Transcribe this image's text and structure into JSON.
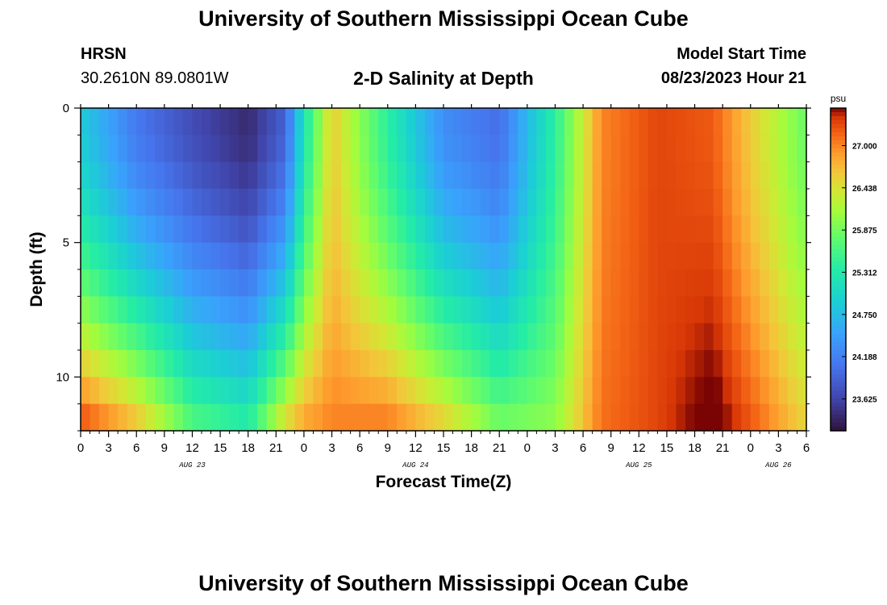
{
  "header": {
    "title": "University of Southern Mississippi Ocean Cube",
    "station": "HRSN",
    "coords": "30.2610N  89.0801W",
    "subtitle": "2-D Salinity at Depth",
    "start_label": "Model Start Time",
    "start_value": "08/23/2023 Hour 21"
  },
  "footer": {
    "title": "University of Southern Mississippi Ocean Cube"
  },
  "chart_data": {
    "type": "heatmap",
    "title": "2-D Salinity at Depth",
    "xlabel": "Forecast Time(Z)",
    "ylabel": "Depth (ft)",
    "x_hours_range": [
      0,
      78
    ],
    "x_tick_labels": [
      "0",
      "3",
      "6",
      "9",
      "12",
      "15",
      "18",
      "21",
      "0",
      "3",
      "6",
      "9",
      "12",
      "15",
      "18",
      "21",
      "0",
      "3",
      "6",
      "9",
      "12",
      "15",
      "18",
      "21",
      "0",
      "3",
      "6"
    ],
    "day_labels": [
      {
        "label": "AUG 23",
        "hour": 12
      },
      {
        "label": "AUG 24",
        "hour": 36
      },
      {
        "label": "AUG 25",
        "hour": 60
      },
      {
        "label": "AUG 26",
        "hour": 75
      }
    ],
    "y_range": [
      0,
      12
    ],
    "y_tick_labels": [
      "0",
      "5",
      "10"
    ],
    "y_tick_values": [
      0,
      5,
      10
    ],
    "colorbar": {
      "unit": "psu",
      "min": 23.2,
      "max": 27.5,
      "ticks": [
        "27.000",
        "26.438",
        "25.875",
        "25.312",
        "24.750",
        "24.188",
        "23.625"
      ]
    },
    "salinity_estimates": [
      {
        "hour": 0,
        "surface": 24.9,
        "bottom": 27.2
      },
      {
        "hour": 6,
        "surface": 24.1,
        "bottom": 26.6
      },
      {
        "hour": 12,
        "surface": 23.7,
        "bottom": 25.6
      },
      {
        "hour": 18,
        "surface": 23.4,
        "bottom": 25.3
      },
      {
        "hour": 22,
        "surface": 23.9,
        "bottom": 26.4
      },
      {
        "hour": 24,
        "surface": 25.2,
        "bottom": 26.8
      },
      {
        "hour": 27,
        "surface": 26.6,
        "bottom": 27.0
      },
      {
        "hour": 33,
        "surface": 25.4,
        "bottom": 27.0
      },
      {
        "hour": 39,
        "surface": 24.3,
        "bottom": 26.5
      },
      {
        "hour": 45,
        "surface": 24.0,
        "bottom": 25.8
      },
      {
        "hour": 51,
        "surface": 25.4,
        "bottom": 26.0
      },
      {
        "hour": 56,
        "surface": 27.0,
        "bottom": 27.1
      },
      {
        "hour": 62,
        "surface": 27.3,
        "bottom": 27.3
      },
      {
        "hour": 68,
        "surface": 27.2,
        "bottom": 27.6
      },
      {
        "hour": 72,
        "surface": 26.6,
        "bottom": 27.2
      },
      {
        "hour": 78,
        "surface": 25.8,
        "bottom": 26.5
      }
    ]
  }
}
